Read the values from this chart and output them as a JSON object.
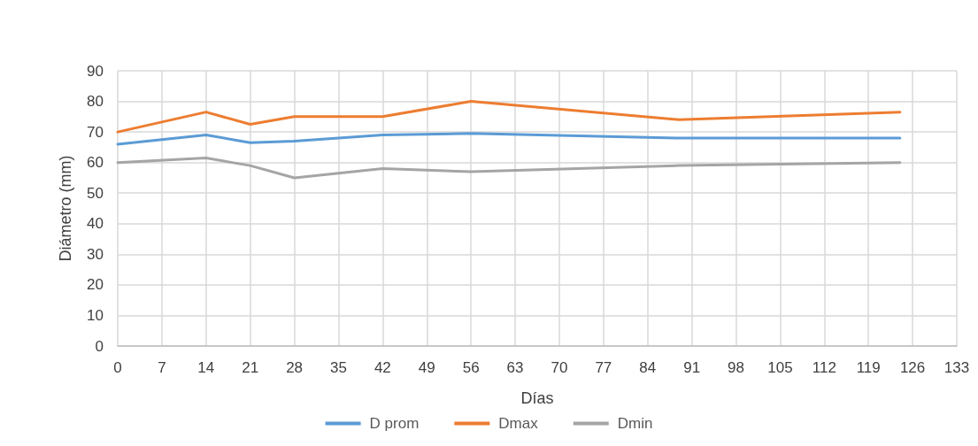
{
  "chart_data": {
    "type": "line",
    "xlabel": "Días",
    "ylabel": "Diámetro (mm)",
    "x": [
      0,
      14,
      21,
      28,
      42,
      56,
      89,
      124
    ],
    "series": [
      {
        "name": "D prom",
        "color": "#5b9bd5",
        "values": [
          66,
          69,
          66.5,
          67,
          69,
          69.5,
          68,
          68
        ]
      },
      {
        "name": "Dmax",
        "color": "#ed7d31",
        "values": [
          70,
          76.5,
          72.5,
          75,
          75,
          80,
          74,
          76.5
        ]
      },
      {
        "name": "Dmin",
        "color": "#a5a5a5",
        "values": [
          60,
          61.5,
          59,
          55,
          58,
          57,
          59,
          60
        ]
      }
    ],
    "xlim": [
      0,
      133
    ],
    "xticks": [
      0,
      7,
      14,
      21,
      28,
      35,
      42,
      49,
      56,
      63,
      70,
      77,
      84,
      91,
      98,
      105,
      112,
      119,
      126,
      133
    ],
    "ylim": [
      0,
      90
    ],
    "yticks": [
      0,
      10,
      20,
      30,
      40,
      50,
      60,
      70,
      80,
      90
    ],
    "grid": true,
    "legend": "bottom",
    "marker": "none",
    "line_style": "solid"
  }
}
